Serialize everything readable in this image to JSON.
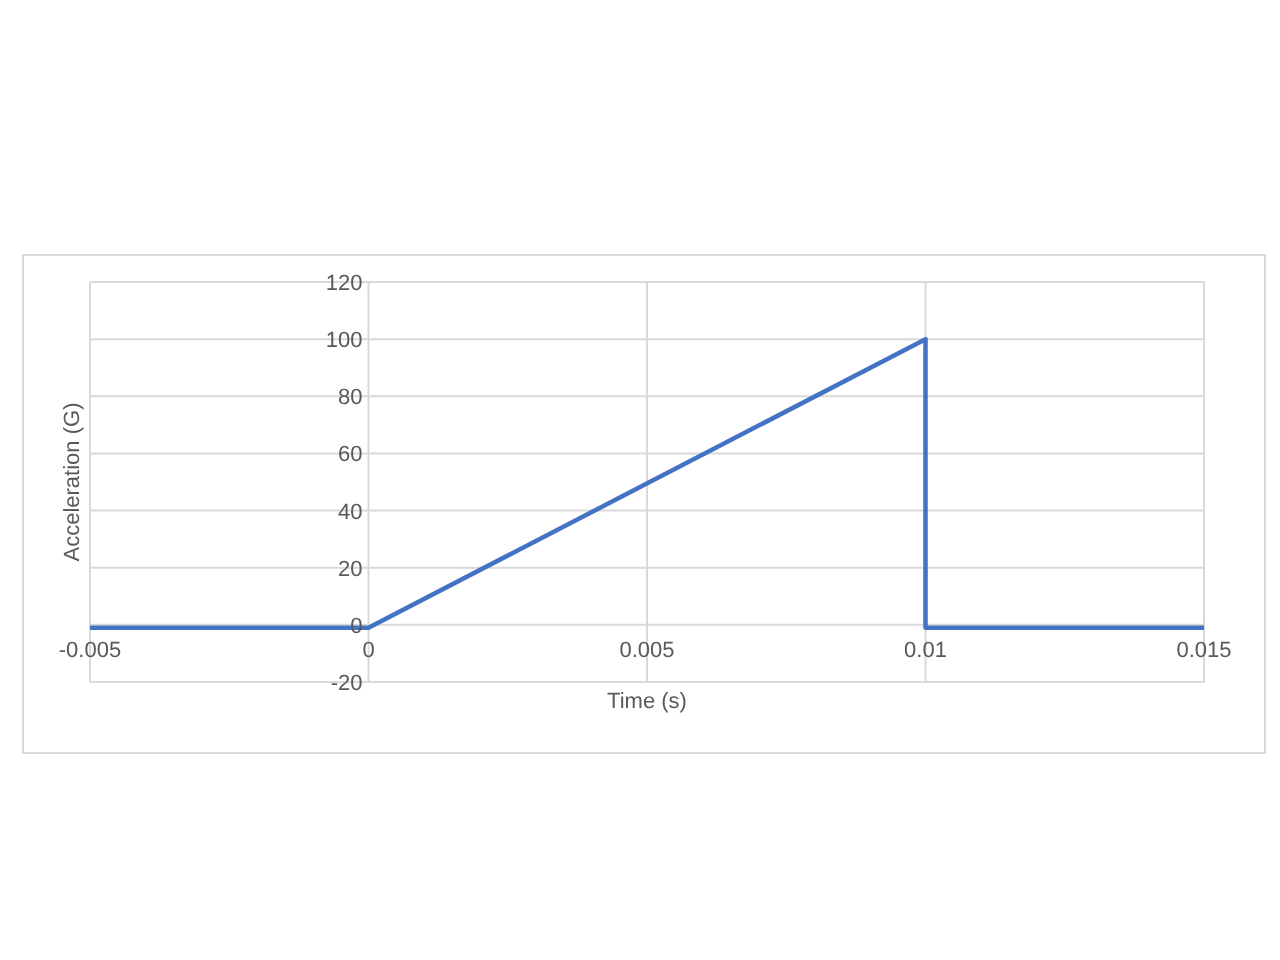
{
  "chart_data": {
    "type": "line",
    "xlabel": "Time (s)",
    "ylabel": "Acceleration (G)",
    "x": [
      -0.005,
      0,
      0.01,
      0.01,
      0.015
    ],
    "series": [
      {
        "color": "#4472c4",
        "values": [
          -1,
          -1,
          100,
          -1,
          -1
        ]
      }
    ],
    "xlim": [
      -0.005,
      0.015
    ],
    "xticks": [
      -0.005,
      0,
      0.005,
      0.01,
      0.015
    ],
    "ylim": [
      -20,
      120
    ],
    "yticks": [
      -20,
      0,
      20,
      40,
      60,
      80,
      100,
      120
    ],
    "grid": true,
    "marker": "none",
    "line_style": "solid"
  }
}
